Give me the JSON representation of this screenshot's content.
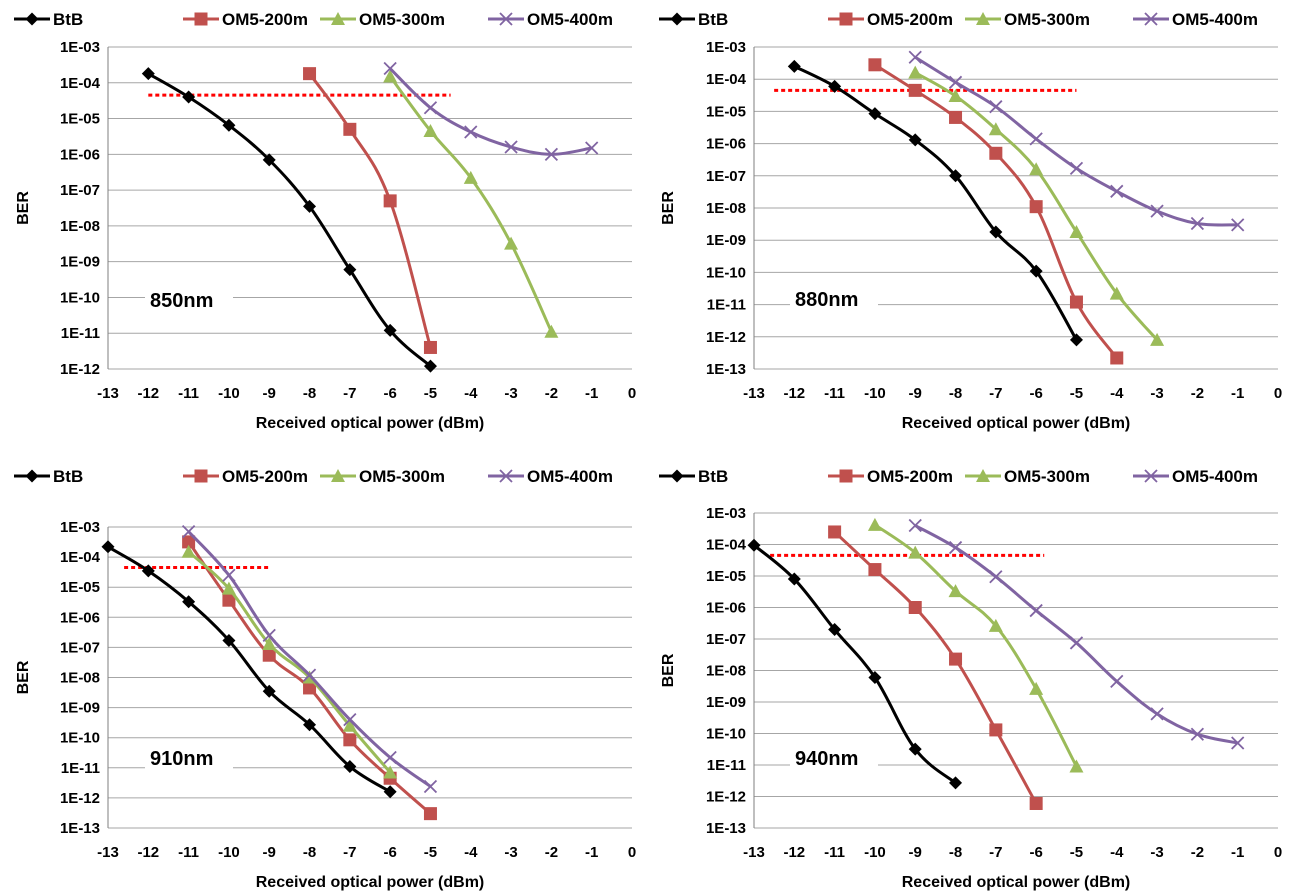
{
  "colors": {
    "BtB": "#000000",
    "OM5-200m": "#c0504d",
    "OM5-300m": "#9bbb59",
    "OM5-400m": "#8064a2",
    "threshold": "#ff0000",
    "grid": "#a6a6a6"
  },
  "chart_data": [
    {
      "type": "line",
      "annotation": "850nm",
      "xlabel": "Received optical power (dBm)",
      "ylabel": "BER",
      "xlim": [
        -13,
        0
      ],
      "ylim": [
        1e-12,
        0.001
      ],
      "yscale": "log",
      "xticks": [
        "-13",
        "-12",
        "-11",
        "-10",
        "-9",
        "-8",
        "-7",
        "-6",
        "-5",
        "-4",
        "-3",
        "-2",
        "-1",
        "0"
      ],
      "yticks": [
        "1E-03",
        "1E-04",
        "1E-05",
        "1E-06",
        "1E-07",
        "1E-08",
        "1E-09",
        "1E-10",
        "1E-11",
        "1E-12"
      ],
      "grid": "horizontal",
      "legend": "top",
      "threshold": {
        "y": 4.5e-05,
        "x": [
          -12,
          -4.5
        ]
      },
      "series": [
        {
          "name": "BtB",
          "marker": "diamond",
          "x": [
            -12,
            -11,
            -10,
            -9,
            -8,
            -7,
            -6,
            -5
          ],
          "y": [
            0.00018,
            4e-05,
            6.5e-06,
            7e-07,
            3.5e-08,
            6e-10,
            1.2e-11,
            1.2e-12
          ]
        },
        {
          "name": "OM5-200m",
          "marker": "square",
          "x": [
            -8,
            -7,
            -6,
            -5
          ],
          "y": [
            0.00018,
            5e-06,
            5e-08,
            4e-12
          ]
        },
        {
          "name": "OM5-300m",
          "marker": "triangle",
          "x": [
            -6,
            -5,
            -4,
            -3,
            -2
          ],
          "y": [
            0.00015,
            4.5e-06,
            2.2e-07,
            3.2e-09,
            1.1e-11
          ]
        },
        {
          "name": "OM5-400m",
          "marker": "x",
          "x": [
            -6,
            -5,
            -4,
            -3,
            -2,
            -1
          ],
          "y": [
            0.00025,
            2e-05,
            4.2e-06,
            1.6e-06,
            1e-06,
            1.5e-06
          ]
        }
      ]
    },
    {
      "type": "line",
      "annotation": "880nm",
      "xlabel": "Received optical power (dBm)",
      "ylabel": "BER",
      "xlim": [
        -13,
        0
      ],
      "ylim": [
        1e-13,
        0.001
      ],
      "yscale": "log",
      "xticks": [
        "-13",
        "-12",
        "-11",
        "-10",
        "-9",
        "-8",
        "-7",
        "-6",
        "-5",
        "-4",
        "-3",
        "-2",
        "-1",
        "0"
      ],
      "yticks": [
        "1E-03",
        "1E-04",
        "1E-05",
        "1E-06",
        "1E-07",
        "1E-08",
        "1E-09",
        "1E-10",
        "1E-11",
        "1E-12",
        "1E-13"
      ],
      "grid": "horizontal",
      "legend": "top",
      "threshold": {
        "y": 4.5e-05,
        "x": [
          -12.5,
          -5
        ]
      },
      "series": [
        {
          "name": "BtB",
          "marker": "diamond",
          "x": [
            -12,
            -11,
            -10,
            -9,
            -8,
            -7,
            -6,
            -5
          ],
          "y": [
            0.00025,
            6e-05,
            8.5e-06,
            1.3e-06,
            1e-07,
            1.8e-09,
            1.1e-10,
            8e-13
          ]
        },
        {
          "name": "OM5-200m",
          "marker": "square",
          "x": [
            -10,
            -9,
            -8,
            -7,
            -6,
            -5,
            -4
          ],
          "y": [
            0.00028,
            4.5e-05,
            6.5e-06,
            5e-07,
            1.1e-08,
            1.2e-11,
            2.2e-13
          ]
        },
        {
          "name": "OM5-300m",
          "marker": "triangle",
          "x": [
            -9,
            -8,
            -7,
            -6,
            -5,
            -4,
            -3
          ],
          "y": [
            0.00016,
            3e-05,
            2.8e-06,
            1.6e-07,
            1.8e-09,
            2.2e-11,
            8e-13
          ]
        },
        {
          "name": "OM5-400m",
          "marker": "x",
          "x": [
            -9,
            -8,
            -7,
            -6,
            -5,
            -4,
            -3,
            -2,
            -1
          ],
          "y": [
            0.00048,
            8e-05,
            1.4e-05,
            1.4e-06,
            1.7e-07,
            3.3e-08,
            8e-09,
            3.3e-09,
            3e-09
          ]
        }
      ]
    },
    {
      "type": "line",
      "annotation": "910nm",
      "xlabel": "Received optical power (dBm)",
      "ylabel": "BER",
      "xlim": [
        -13,
        0
      ],
      "ylim": [
        1e-13,
        0.001
      ],
      "yscale": "log",
      "xticks": [
        "-13",
        "-12",
        "-11",
        "-10",
        "-9",
        "-8",
        "-7",
        "-6",
        "-5",
        "-4",
        "-3",
        "-2",
        "-1",
        "0"
      ],
      "yticks": [
        "1E-03",
        "1E-04",
        "1E-05",
        "1E-06",
        "1E-07",
        "1E-08",
        "1E-09",
        "1E-10",
        "1E-11",
        "1E-12",
        "1E-13"
      ],
      "grid": "horizontal",
      "legend": "top",
      "threshold": {
        "y": 4.5e-05,
        "x": [
          -12.6,
          -9
        ]
      },
      "series": [
        {
          "name": "BtB",
          "marker": "diamond",
          "x": [
            -13,
            -12,
            -11,
            -10,
            -9,
            -8,
            -7,
            -6
          ],
          "y": [
            0.00022,
            3.5e-05,
            3.3e-06,
            1.7e-07,
            3.5e-09,
            2.7e-10,
            1.1e-11,
            1.6e-12
          ]
        },
        {
          "name": "OM5-200m",
          "marker": "square",
          "x": [
            -11,
            -10,
            -9,
            -8,
            -7,
            -6,
            -5
          ],
          "y": [
            0.00032,
            3.7e-06,
            5.5e-08,
            4.5e-09,
            8.5e-11,
            4.5e-12,
            3e-13
          ]
        },
        {
          "name": "OM5-300m",
          "marker": "triangle",
          "x": [
            -11,
            -10,
            -9,
            -8,
            -7,
            -6
          ],
          "y": [
            0.00015,
            9e-06,
            1.3e-07,
            1e-08,
            2.5e-10,
            7e-12
          ]
        },
        {
          "name": "OM5-400m",
          "marker": "x",
          "x": [
            -11,
            -10,
            -9,
            -8,
            -7,
            -6,
            -5
          ],
          "y": [
            0.0007,
            2.5e-05,
            2.5e-07,
            1.2e-08,
            4e-10,
            2.2e-11,
            2.4e-12
          ]
        }
      ]
    },
    {
      "type": "line",
      "annotation": "940nm",
      "xlabel": "Received optical power (dBm)",
      "ylabel": "BER",
      "xlim": [
        -13,
        0
      ],
      "ylim": [
        1e-13,
        0.001
      ],
      "yscale": "log",
      "xticks": [
        "-13",
        "-12",
        "-11",
        "-10",
        "-9",
        "-8",
        "-7",
        "-6",
        "-5",
        "-4",
        "-3",
        "-2",
        "-1",
        "0"
      ],
      "yticks": [
        "1E-03",
        "1E-04",
        "1E-05",
        "1E-06",
        "1E-07",
        "1E-08",
        "1E-09",
        "1E-10",
        "1E-11",
        "1E-12",
        "1E-13"
      ],
      "grid": "horizontal",
      "legend": "top",
      "threshold": {
        "y": 4.5e-05,
        "x": [
          -12.6,
          -5.8
        ]
      },
      "series": [
        {
          "name": "BtB",
          "marker": "diamond",
          "x": [
            -13,
            -12,
            -11,
            -10,
            -9,
            -8
          ],
          "y": [
            9.5e-05,
            8e-06,
            2e-07,
            6e-09,
            3.2e-11,
            2.7e-12
          ]
        },
        {
          "name": "OM5-200m",
          "marker": "square",
          "x": [
            -11,
            -10,
            -9,
            -8,
            -7,
            -6
          ],
          "y": [
            0.00025,
            1.6e-05,
            1e-06,
            2.3e-08,
            1.3e-10,
            6e-13
          ]
        },
        {
          "name": "OM5-300m",
          "marker": "triangle",
          "x": [
            -10,
            -9,
            -8,
            -7,
            -6,
            -5
          ],
          "y": [
            0.00042,
            5.5e-05,
            3.3e-06,
            2.6e-07,
            2.6e-09,
            9e-12
          ]
        },
        {
          "name": "OM5-400m",
          "marker": "x",
          "x": [
            -9,
            -8,
            -7,
            -6,
            -5,
            -4,
            -3,
            -2,
            -1
          ],
          "y": [
            0.0004,
            8e-05,
            9.5e-06,
            8e-07,
            7.5e-08,
            4.5e-09,
            4.2e-10,
            9.5e-11,
            5e-11
          ]
        }
      ]
    }
  ]
}
